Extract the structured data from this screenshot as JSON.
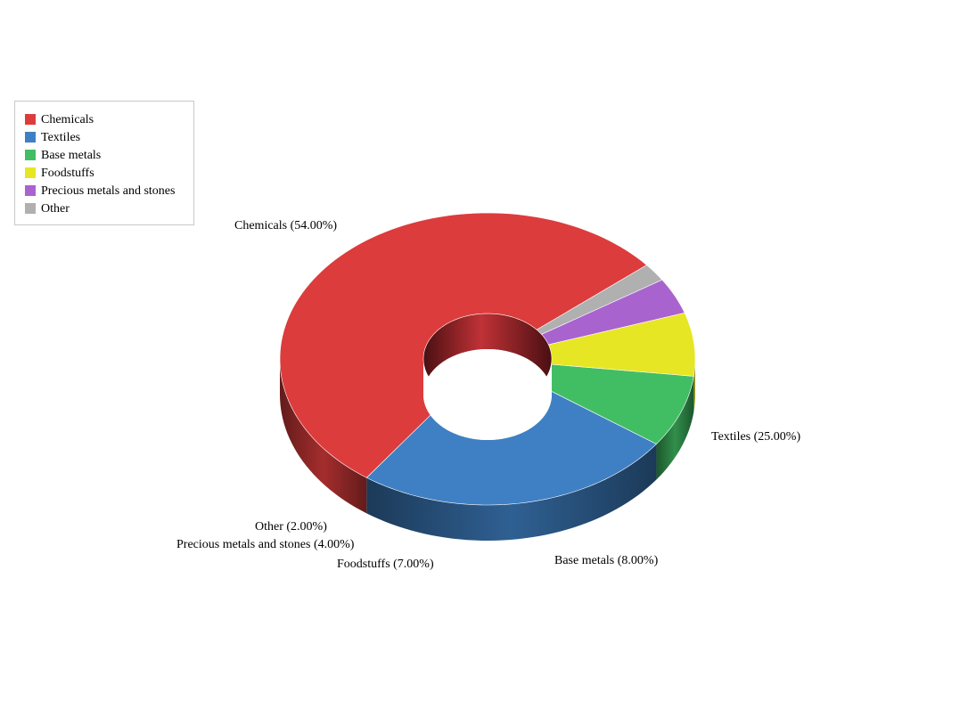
{
  "chart_data": {
    "type": "pie",
    "variant": "3d-donut",
    "title": "",
    "categories": [
      "Chemicals",
      "Textiles",
      "Base metals",
      "Foodstuffs",
      "Precious metals and stones",
      "Other"
    ],
    "values": [
      54,
      25,
      8,
      7,
      4,
      2
    ],
    "colors": [
      "#dc3c3c",
      "#3f80c4",
      "#41be64",
      "#e6e624",
      "#a963cf",
      "#b0b0b0"
    ],
    "slice_labels": [
      "Chemicals (54.00%)",
      "Textiles (25.00%)",
      "Base metals (8.00%)",
      "Foodstuffs (7.00%)",
      "Precious metals and stones (4.00%)",
      "Other (2.00%)"
    ],
    "legend": {
      "position": "top-left",
      "entries": [
        "Chemicals",
        "Textiles",
        "Base metals",
        "Foodstuffs",
        "Precious metals and stones",
        "Other"
      ]
    }
  }
}
